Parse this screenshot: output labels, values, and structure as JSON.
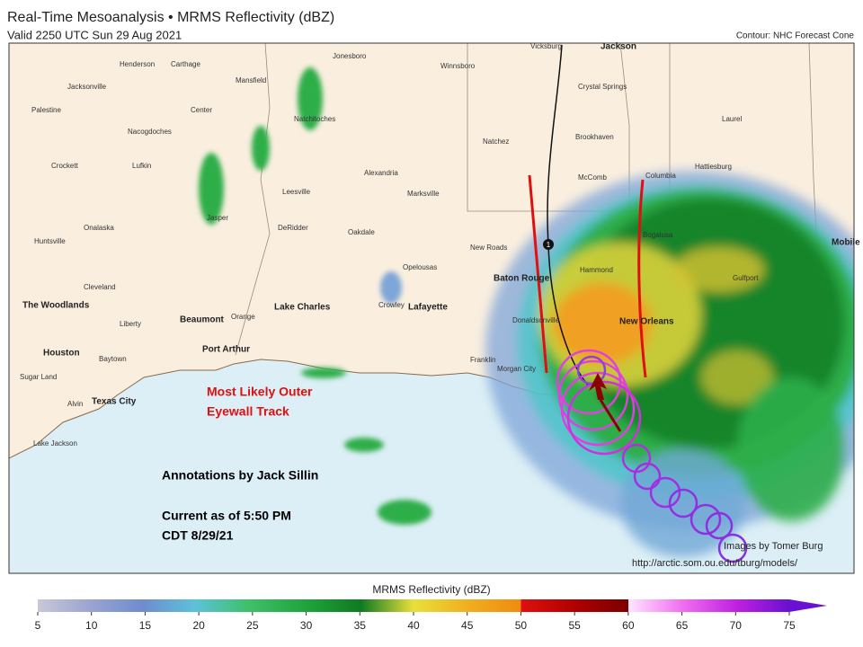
{
  "header": {
    "title": "Real-Time Mesoanalysis • MRMS Reflectivity (dBZ)",
    "valid": "Valid 2250 UTC Sun 29 Aug 2021",
    "contour_note": "Contour: NHC Forecast Cone"
  },
  "map": {
    "places": [
      {
        "name": "Vicksburg"
      },
      {
        "name": "Jackson"
      },
      {
        "name": "Henderson"
      },
      {
        "name": "Carthage"
      },
      {
        "name": "Jonesboro"
      },
      {
        "name": "Winnsboro"
      },
      {
        "name": "Jacksonville"
      },
      {
        "name": "Mansfield"
      },
      {
        "name": "Crystal Springs"
      },
      {
        "name": "Palestine"
      },
      {
        "name": "Center"
      },
      {
        "name": "Natchitoches"
      },
      {
        "name": "Laurel"
      },
      {
        "name": "Nacogdoches"
      },
      {
        "name": "Natchez"
      },
      {
        "name": "Brookhaven"
      },
      {
        "name": "Hattiesburg"
      },
      {
        "name": "Crockett"
      },
      {
        "name": "Lufkin"
      },
      {
        "name": "Alexandria"
      },
      {
        "name": "McComb"
      },
      {
        "name": "Columbia"
      },
      {
        "name": "Leesville"
      },
      {
        "name": "Marksville"
      },
      {
        "name": "Jasper"
      },
      {
        "name": "Onalaska"
      },
      {
        "name": "DeRidder"
      },
      {
        "name": "Oakdale"
      },
      {
        "name": "Bogalusa"
      },
      {
        "name": "Huntsville"
      },
      {
        "name": "New Roads"
      },
      {
        "name": "Mobile"
      },
      {
        "name": "Opelousas"
      },
      {
        "name": "Baton Rouge"
      },
      {
        "name": "Hammond"
      },
      {
        "name": "Gulfport"
      },
      {
        "name": "Cleveland"
      },
      {
        "name": "The Woodlands"
      },
      {
        "name": "Lake Charles"
      },
      {
        "name": "Crowley"
      },
      {
        "name": "Lafayette"
      },
      {
        "name": "Liberty"
      },
      {
        "name": "Beaumont"
      },
      {
        "name": "Orange"
      },
      {
        "name": "Donaldsonville"
      },
      {
        "name": "New Orleans"
      },
      {
        "name": "Houston"
      },
      {
        "name": "Port Arthur"
      },
      {
        "name": "Baytown"
      },
      {
        "name": "Franklin"
      },
      {
        "name": "Morgan City"
      },
      {
        "name": "Sugar Land"
      },
      {
        "name": "Alvin"
      },
      {
        "name": "Texas City"
      },
      {
        "name": "Lake Jackson"
      }
    ],
    "track_marker": "1",
    "annotations": {
      "eyewall_line1": "Most Likely Outer",
      "eyewall_line2": "Eyewall Track",
      "author": "Annotations by Jack Sillin",
      "current1": "Current as of 5:50 PM",
      "current2": "CDT 8/29/21"
    },
    "credits": {
      "images": "Images by Tomer Burg",
      "url": "http://arctic.som.ou.edu/tburg/models/"
    }
  },
  "colorbar": {
    "label": "MRMS Reflectivity (dBZ)",
    "ticks": [
      5,
      10,
      15,
      20,
      25,
      30,
      35,
      40,
      45,
      50,
      55,
      60,
      65,
      70,
      75
    ]
  }
}
